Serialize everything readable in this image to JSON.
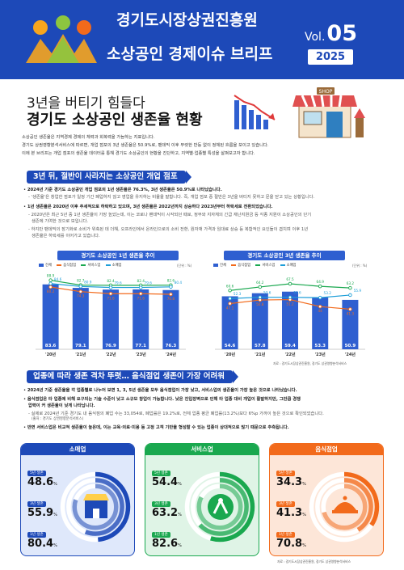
{
  "header": {
    "org": "경기도시장상권진흥원",
    "title": "소상공인 경제이슈 브리프",
    "vol_prefix": "Vol.",
    "vol_num": "05",
    "year": "2025",
    "color": "#1d49b8"
  },
  "title": {
    "line1": "3년을 버티기 힘들다",
    "line2": "경기도 소상공인 생존율 현황",
    "shop_sign": "SHOP"
  },
  "intro": [
    "소상공인 생존율은 지역경제 경제의 체력과 회복력을 가늠하는 지표입니다.",
    "경기도 상권영향분석서비스에 따르면, 개업 점포의 3년 생존율은 50.9%로, 팬데믹 이후 뚜렷한 반등 없이 정체된 흐름을 보이고 있습니다.",
    "이에 본 브리프는 개업 점포의 생존율 데이터를 통해 경기도 소상공인의 현황을 진단하고, 지역별·업종별 특성을 살펴보고자 합니다."
  ],
  "section1": {
    "title": "3년 뒤, 절반이 사라지는 소상공인 개업 점포",
    "bullets": [
      "2024년 기준 경기도 소상공인 개업 점포의 1년 생존율은 76.3%, 3년 생존율은 50.9%로 나타났습니다.",
      "'생존율'은 창업한 점포가 일정 기간 폐업하지 않고 영업을 유지하는 비율을 말합니다. 즉, 개업 점포 중 절반은 3년을 버티지 못하고 문을 닫고 있는 상황입니다.",
      "1년 생존율은 2020년 이후 추세적으로 하락하고 있으며, 3년 생존율은 2022년까지 상승하다 2023년부터 하락세로 전환되었습니다.",
      "2020년은 최근 5년 중 1년 생존율이 가장 높았는데, 이는 코로나 팬데믹이 시작되던 때로, 정부와 지자체의 긴급 재난지원금 등 각종 지원이 소상공인의 단기",
      "생존에 기여한 것으로 보입니다.",
      "하지만 팬데믹의 장기화로 소비가 위축된 데 더해, 오프라인에서 온라인으로의 소비 전환, 원자재 가격과 임대료 상승 등 복합적인 요인들이 겹치며 이후 1년",
      "생존율은 하락세를 이어가고 있습니다."
    ]
  },
  "legend": [
    "전체",
    "음식점업",
    "서비스업",
    "소매업"
  ],
  "unit": "(단위 : %)",
  "chart_data": [
    {
      "type": "bar",
      "title": "경기도 소상공인 1년 생존율 추이",
      "categories": [
        "'20년",
        "'21년",
        "'22년",
        "'23년",
        "'24년"
      ],
      "series": [
        {
          "name": "전체",
          "values": [
            83.6,
            79.1,
            76.9,
            77.1,
            76.3
          ],
          "kind": "bar"
        },
        {
          "name": "음식점업",
          "values": [
            80.2,
            74.3,
            71.6,
            71.6,
            70.8
          ],
          "kind": "line"
        },
        {
          "name": "서비스업",
          "values": [
            88.9,
            82.7,
            82.4,
            82.4,
            82.6
          ],
          "kind": "line"
        },
        {
          "name": "소매업",
          "values": [
            84.6,
            80.9,
            79.6,
            79.6,
            80.4
          ],
          "kind": "line"
        }
      ],
      "ylim": [
        0,
        100
      ]
    },
    {
      "type": "bar",
      "title": "경기도 소상공인 3년 생존율 추이",
      "categories": [
        "'20년",
        "'21년",
        "'22년",
        "'23년",
        "'24년"
      ],
      "series": [
        {
          "name": "전체",
          "values": [
            54.6,
            57.8,
            59.4,
            53.3,
            50.9
          ],
          "kind": "bar"
        },
        {
          "name": "음식점업",
          "values": [
            47.1,
            50.8,
            51.2,
            44.0,
            41.3
          ],
          "kind": "line"
        },
        {
          "name": "서비스업",
          "values": [
            60.6,
            64.2,
            67.5,
            64.9,
            63.2
          ],
          "kind": "line"
        },
        {
          "name": "소매업",
          "values": [
            52.3,
            53.6,
            53.6,
            53.2,
            55.9
          ],
          "kind": "line"
        }
      ],
      "ylim": [
        0,
        80
      ]
    }
  ],
  "chart_source": "자료 : 경기도시장상권진흥원, 경기도 상권영향분석서비스",
  "section2": {
    "title": "업종에 따라 생존 격차 뚜렷… 음식점업 생존이 가장 어려워",
    "bullets": [
      "2024년 기준 생존율을 각 업종별로 나누어 보면 1, 3, 5년 생존율 모두 음식점업이 가장 낮고, 서비스업의 생존율이 가장 높은 것으로 나타났습니다.",
      "음식점업은 타 업종에 비해 요구되는 기술 수준이 낮고 소규모 창업이 가능합니다. 낮은 진입장벽으로 인해 타 업종 대비 개업이 활발하지만, 그만큼 경쟁",
      "압력이 커 생존율이 낮게 나타납니다.",
      "- 실제로 2024년 기준 경기도 내 음식점의 폐업 수는 33,054로, 폐업률은 19.2%로, 전체 업종 평균 폐업률(13.2%)보다 6%p 가까이 높은 것으로 확인되었습니다.",
      "(출처 : 경기도 상권영향분석서비스)",
      "반면 서비스업은 비교적 생존율이 높은데, 이는 교육·의료·미용 등 고정 고객 기반을 형성할 수 있는 업종이 상대적으로 많기 때문으로 추측됩니다."
    ]
  },
  "cards": [
    {
      "title": "소매업",
      "color": "#1d49b8",
      "light": "#dfe8fb",
      "labels": [
        "5년 생존",
        "3년 생존",
        "1년 생존"
      ],
      "values": [
        "48.6",
        "55.9",
        "80.4"
      ],
      "fills": [
        0.486,
        0.559,
        0.804
      ],
      "unit": "%"
    },
    {
      "title": "서비스업",
      "color": "#1aa84f",
      "light": "#dff4e6",
      "labels": [
        "5년 생존",
        "3년 생존",
        "1년 생존"
      ],
      "values": [
        "54.4",
        "63.2",
        "82.6"
      ],
      "fills": [
        0.544,
        0.632,
        0.826
      ],
      "unit": "%"
    },
    {
      "title": "음식점업",
      "color": "#f26a1b",
      "light": "#fde6d8",
      "labels": [
        "5년 생존",
        "3년 생존",
        "1년 생존"
      ],
      "values": [
        "34.3",
        "41.3",
        "70.8"
      ],
      "fills": [
        0.343,
        0.413,
        0.708
      ],
      "unit": "%"
    }
  ],
  "footer_source": "자료 : 경기도시장상권진흥원, 경기도 상권영향분석서비스"
}
